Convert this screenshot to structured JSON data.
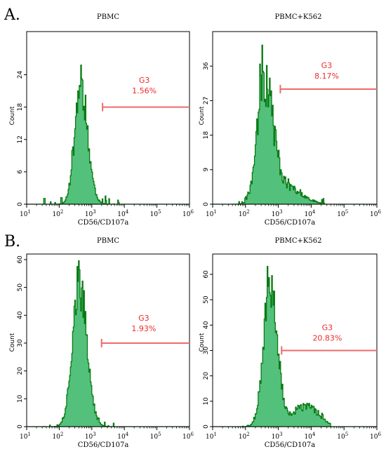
{
  "panel_labels": [
    "A.",
    "B."
  ],
  "chart_data": [
    {
      "type": "histogram",
      "panel": "A.",
      "title": "PBMC",
      "xlabel": "CD56/CD107a",
      "ylabel": "Count",
      "x_scale": "log",
      "x_ticks": [
        "10",
        "10",
        "10",
        "10",
        "10",
        "10"
      ],
      "x_tick_exponents": [
        "1",
        "2",
        "3",
        "4",
        "5",
        "6"
      ],
      "xlim": [
        10,
        1000000
      ],
      "ylim": [
        0,
        32
      ],
      "y_ticks": [
        "0",
        "6",
        "12",
        "18",
        "24"
      ],
      "y_tick_values": [
        0,
        6,
        12,
        18,
        24
      ],
      "peak": {
        "log_center": 2.65,
        "sigma_left": 0.18,
        "sigma_right": 0.22,
        "height": 22,
        "tail_height": 0,
        "tail_center": 3.9,
        "tail_sigma": 0.35,
        "x_min": 1.5,
        "x_max": 3.9,
        "noise": 0.22,
        "seed": 11
      },
      "gate": {
        "name": "G3",
        "percent": "1.56%",
        "x_start": 3.33,
        "y": 18,
        "text_y": 22.5
      }
    },
    {
      "type": "histogram",
      "panel": "A.",
      "title": "PBMC+K562",
      "xlabel": "CD56/CD107a",
      "ylabel": "Count",
      "x_scale": "log",
      "x_ticks": [
        "10",
        "10",
        "10",
        "10",
        "10",
        "10"
      ],
      "x_tick_exponents": [
        "1",
        "2",
        "3",
        "4",
        "5",
        "6"
      ],
      "xlim": [
        10,
        1000000
      ],
      "ylim": [
        0,
        45
      ],
      "y_ticks": [
        "0",
        "9",
        "18",
        "27",
        "36"
      ],
      "y_tick_values": [
        0,
        9,
        18,
        27,
        36
      ],
      "peak": {
        "log_center": 2.55,
        "sigma_left": 0.2,
        "sigma_right": 0.28,
        "height": 33,
        "tail_height": 4,
        "tail_center": 3.3,
        "tail_sigma": 0.45,
        "x_min": 1.6,
        "x_max": 4.4,
        "noise": 0.25,
        "seed": 23
      },
      "gate": {
        "name": "G3",
        "percent": "8.17%",
        "x_start": 3.06,
        "y": 30,
        "text_y": 35.5
      }
    },
    {
      "type": "histogram",
      "panel": "B.",
      "title": "PBMC",
      "xlabel": "CD56/CD107a",
      "ylabel": "Count",
      "x_scale": "log",
      "x_ticks": [
        "10",
        "10",
        "10",
        "10",
        "10",
        "10"
      ],
      "x_tick_exponents": [
        "1",
        "2",
        "3",
        "4",
        "5",
        "6"
      ],
      "xlim": [
        10,
        1000000
      ],
      "ylim": [
        0,
        62
      ],
      "y_ticks": [
        "0",
        "10",
        "20",
        "30",
        "40",
        "50",
        "60"
      ],
      "y_tick_values": [
        0,
        10,
        20,
        30,
        40,
        50,
        60
      ],
      "peak": {
        "log_center": 2.6,
        "sigma_left": 0.2,
        "sigma_right": 0.24,
        "height": 52,
        "tail_height": 0,
        "tail_center": 3.5,
        "tail_sigma": 0.4,
        "x_min": 1.5,
        "x_max": 3.7,
        "noise": 0.18,
        "seed": 37
      },
      "gate": {
        "name": "G3",
        "percent": "1.93%",
        "x_start": 3.3,
        "y": 30,
        "text_y": 38
      }
    },
    {
      "type": "histogram",
      "panel": "B.",
      "title": "PBMC+K562",
      "xlabel": "CD56/CD107a",
      "ylabel": "Count",
      "x_scale": "log",
      "x_ticks": [
        "10",
        "10",
        "10",
        "10",
        "10",
        "10"
      ],
      "x_tick_exponents": [
        "1",
        "2",
        "3",
        "4",
        "5",
        "6"
      ],
      "xlim": [
        10,
        1000000
      ],
      "ylim": [
        0,
        68
      ],
      "y_ticks": [
        "0",
        "10",
        "20",
        "30",
        "40",
        "50",
        "60"
      ],
      "y_tick_values": [
        0,
        10,
        20,
        30,
        40,
        50,
        60
      ],
      "peak": {
        "log_center": 2.75,
        "sigma_left": 0.2,
        "sigma_right": 0.22,
        "height": 57,
        "tail_height": 8,
        "tail_center": 3.85,
        "tail_sigma": 0.38,
        "x_min": 1.9,
        "x_max": 4.6,
        "noise": 0.2,
        "seed": 53
      },
      "gate": {
        "name": "G3",
        "percent": "20.83%",
        "x_start": 3.1,
        "y": 30,
        "text_y": 38
      }
    }
  ],
  "colors": {
    "fill": "#53c07b",
    "outline": "#0a7a14",
    "gate": "#ee6b6b",
    "gate_text": "#ee2b2b",
    "frame": "#000000"
  }
}
